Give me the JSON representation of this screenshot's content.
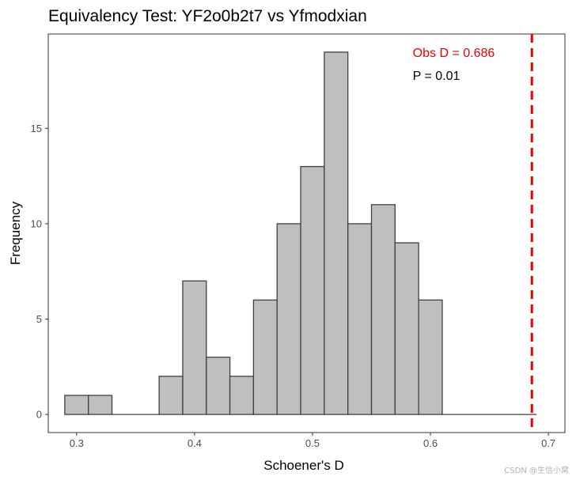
{
  "chart_data": {
    "type": "bar",
    "title": "Equivalency Test: YF2o0b2t7 vs Yfmodxian",
    "xlabel": "Schoener's D",
    "ylabel": "Frequency",
    "bin_width": 0.02,
    "bins": [
      {
        "x0": 0.29,
        "x1": 0.31,
        "count": 1
      },
      {
        "x0": 0.31,
        "x1": 0.33,
        "count": 1
      },
      {
        "x0": 0.33,
        "x1": 0.35,
        "count": 0
      },
      {
        "x0": 0.35,
        "x1": 0.37,
        "count": 0
      },
      {
        "x0": 0.37,
        "x1": 0.39,
        "count": 2
      },
      {
        "x0": 0.39,
        "x1": 0.41,
        "count": 7
      },
      {
        "x0": 0.41,
        "x1": 0.43,
        "count": 3
      },
      {
        "x0": 0.43,
        "x1": 0.45,
        "count": 2
      },
      {
        "x0": 0.45,
        "x1": 0.47,
        "count": 6
      },
      {
        "x0": 0.47,
        "x1": 0.49,
        "count": 10
      },
      {
        "x0": 0.49,
        "x1": 0.51,
        "count": 13
      },
      {
        "x0": 0.51,
        "x1": 0.53,
        "count": 19
      },
      {
        "x0": 0.53,
        "x1": 0.55,
        "count": 10
      },
      {
        "x0": 0.55,
        "x1": 0.57,
        "count": 11
      },
      {
        "x0": 0.57,
        "x1": 0.59,
        "count": 9
      },
      {
        "x0": 0.59,
        "x1": 0.61,
        "count": 6
      },
      {
        "x0": 0.61,
        "x1": 0.63,
        "count": 0
      },
      {
        "x0": 0.63,
        "x1": 0.65,
        "count": 0
      },
      {
        "x0": 0.65,
        "x1": 0.67,
        "count": 0
      },
      {
        "x0": 0.67,
        "x1": 0.69,
        "count": 0
      }
    ],
    "xlim": [
      0.276,
      0.714
    ],
    "ylim": [
      -0.95,
      19.95
    ],
    "x_ticks": [
      {
        "value": 0.3,
        "label": "0.3"
      },
      {
        "value": 0.4,
        "label": "0.4"
      },
      {
        "value": 0.5,
        "label": "0.5"
      },
      {
        "value": 0.6,
        "label": "0.6"
      },
      {
        "value": 0.7,
        "label": "0.7"
      }
    ],
    "y_ticks": [
      {
        "value": 0,
        "label": "0"
      },
      {
        "value": 5,
        "label": "5"
      },
      {
        "value": 10,
        "label": "10"
      },
      {
        "value": 15,
        "label": "15"
      }
    ],
    "reference_line": {
      "x": 0.686,
      "style": "dashed",
      "color": "#ee0000"
    },
    "annotations": [
      {
        "text": "Obs D = 0.686",
        "x": 0.585,
        "y": 19.0,
        "color": "#ee0000"
      },
      {
        "text": "P = 0.01",
        "x": 0.585,
        "y": 17.8,
        "color": "#000000"
      }
    ],
    "bar_fill": "#bfbfbf",
    "bar_stroke": "#404040",
    "grid": false,
    "legend": "none"
  },
  "watermark": "CSDN @生信小窝"
}
